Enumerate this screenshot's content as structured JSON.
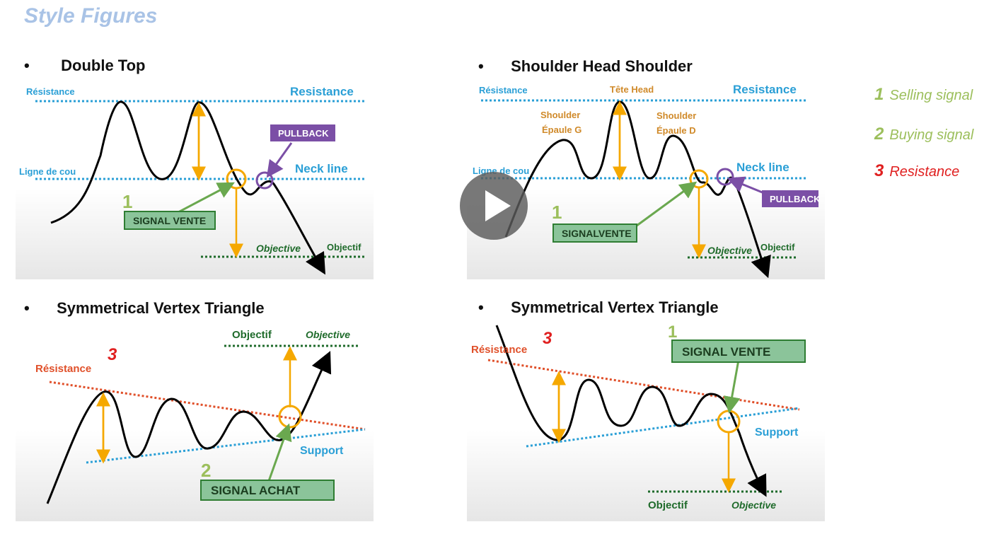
{
  "page_title": "Style Figures",
  "bullets": {
    "b1": "Double Top",
    "b2": "Shoulder Head Shoulder",
    "b3": "Symmetrical Vertex Triangle",
    "b4": "Symmetrical Vertex Triangle"
  },
  "legend": [
    {
      "num": "1",
      "text": "Selling signal",
      "color": "#9cbf5c"
    },
    {
      "num": "2",
      "text": "Buying signal",
      "color": "#9cbf5c"
    },
    {
      "num": "3",
      "text": "Resistance",
      "color": "#e02020"
    }
  ],
  "panel1": {
    "resistance_fr": "Résistance",
    "resistance_en": "Resistance",
    "neck_fr": "Ligne de cou",
    "neck_en": "Neck line",
    "pullback": "PULLBACK",
    "num": "1",
    "signal": "SIGNAL VENTE",
    "objective": "Objective",
    "objectif": "Objectif"
  },
  "panel2": {
    "resistance_fr": "Résistance",
    "head": "Tête  Head",
    "resistance_en": "Resistance",
    "shoulder_l1": "Shoulder",
    "shoulder_l2": "Épaule G",
    "shoulder_r1": "Shoulder",
    "shoulder_r2": "Épaule D",
    "neck_fr": "Ligne de cou",
    "neck_en": "Neck line",
    "pullback": "PULLBACK",
    "num": "1",
    "signal": "SIGNALVENTE",
    "objective": "Objective",
    "objectif": "Objectif"
  },
  "panel3": {
    "num": "3",
    "resistance": "Résistance",
    "objectif": "Objectif",
    "objective": "Objective",
    "support": "Support",
    "num2": "2",
    "signal": "SIGNAL ACHAT"
  },
  "panel4": {
    "resistance": "Résistance",
    "num": "3",
    "num1": "1",
    "signal": "SIGNAL VENTE",
    "support": "Support",
    "objectif": "Objectif",
    "objective": "Objective"
  },
  "colors": {
    "blue_dotted": "#2a9fd6",
    "orange": "#f5a800",
    "green_box": "#2e7d32",
    "purple": "#7b4fa6",
    "red_dotted": "#e0502a",
    "dark_green": "#1f6b2b"
  },
  "video": {
    "control": "play-button"
  }
}
